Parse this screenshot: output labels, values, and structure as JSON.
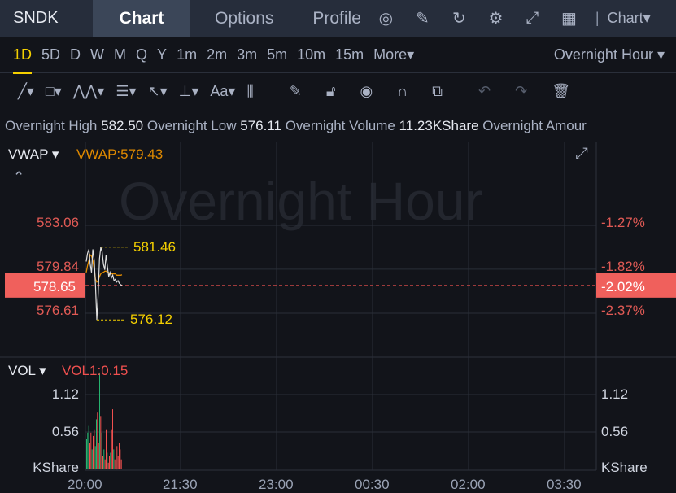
{
  "header": {
    "symbol": "SNDK",
    "tabs": [
      "Chart",
      "Options",
      "Profile"
    ],
    "active_tab": "Chart",
    "icons": [
      "gauge-icon",
      "edit-icon",
      "refresh-icon",
      "settings-icon",
      "fullscreen-icon",
      "grid-icon"
    ],
    "chart_type": "Chart▾"
  },
  "periods": [
    "1D",
    "5D",
    "D",
    "W",
    "M",
    "Q",
    "Y",
    "1m",
    "2m",
    "3m",
    "5m",
    "10m",
    "15m",
    "More▾"
  ],
  "active_period": "1D",
  "session": "Overnight Hour ▾",
  "tools": [
    "line-tool-icon",
    "rectangle-tool-icon",
    "pattern-tool-icon",
    "fib-tool-icon",
    "arrow-tool-icon",
    "measure-tool-icon",
    "text-tool-icon",
    "candle-icon",
    "pen-icon",
    "lock-icon",
    "eye-icon",
    "magnet-icon",
    "layers-icon",
    "undo-icon",
    "redo-icon",
    "trash-icon"
  ],
  "info": {
    "high_label": "Overnight High",
    "high": "582.50",
    "low_label": "Overnight Low",
    "low": "576.11",
    "vol_label": "Overnight Volume",
    "vol": "11.23KShare",
    "amount_label": "Overnight Amour"
  },
  "watermark": "Overnight Hour",
  "indicator": {
    "name": "VWAP ▾",
    "value": "VWAP:579.43",
    "vol_name": "VOL ▾",
    "vol_value": "VOL1:0.15"
  },
  "colors": {
    "up": "#26b36f",
    "down": "#f0504f",
    "price_line": "#e0e0e0",
    "vwap": "#e08a00",
    "marker": "#f5d000"
  },
  "chart_data": {
    "type": "line",
    "price_ticks": [
      "583.06",
      "579.84",
      "576.61"
    ],
    "pct_ticks": [
      "-1.27%",
      "-1.82%",
      "-2.37%"
    ],
    "current_price": "578.65",
    "current_pct": "-2.02%",
    "high_marker": "581.46",
    "low_marker": "576.12",
    "x_ticks": [
      "20:00",
      "21:30",
      "23:00",
      "00:30",
      "02:00",
      "03:30"
    ],
    "vol_ticks": [
      "1.12",
      "0.56",
      "KShare"
    ],
    "price": [
      580.4,
      581.0,
      581.3,
      580.2,
      579.6,
      581.3,
      580.5,
      578.6,
      576.12,
      578.0,
      580.6,
      581.46,
      581.1,
      580.2,
      579.8,
      580.9,
      580.0,
      579.3,
      579.6,
      579.2,
      579.4,
      579.0,
      579.1,
      578.9,
      579.0,
      578.8,
      578.7,
      578.65
    ],
    "vwap": [
      579.6,
      580.1,
      580.5,
      580.9,
      580.8,
      580.5,
      579.8,
      579.1,
      578.9,
      579.0,
      579.3,
      579.5,
      579.6,
      579.6,
      579.7,
      579.7,
      579.6,
      579.6,
      579.5,
      579.5,
      579.5,
      579.5,
      579.5,
      579.4,
      579.4,
      579.4,
      579.4,
      579.43
    ],
    "volume": [
      0.45,
      0.55,
      0.65,
      0.4,
      0.55,
      0.3,
      0.5,
      0.6,
      0.35,
      0.75,
      0.85,
      0.4,
      1.45,
      0.8,
      0.55,
      0.2,
      0.3,
      0.15,
      0.6,
      0.25,
      0.1,
      0.2,
      0.25,
      0.6,
      0.9,
      0.3,
      0.15,
      0.1,
      0.35,
      0.2,
      0.4,
      0.3,
      0.15
    ],
    "volume_up": [
      1,
      1,
      1,
      0,
      0,
      1,
      0,
      0,
      1,
      1,
      0,
      0,
      1,
      0,
      1,
      0,
      1,
      0,
      0,
      1,
      0,
      0,
      1,
      0,
      0,
      1,
      0,
      1,
      0,
      0,
      0,
      0,
      0
    ]
  }
}
